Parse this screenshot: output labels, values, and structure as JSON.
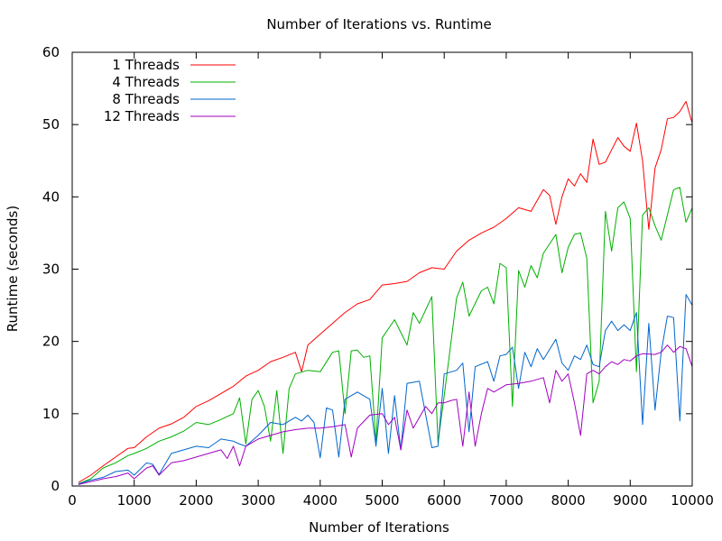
{
  "chart_data": {
    "type": "line",
    "title": "Number of Iterations vs. Runtime",
    "xlabel": "Number of Iterations",
    "ylabel": "Runtime (seconds)",
    "xlim": [
      0,
      10000
    ],
    "ylim": [
      0,
      60
    ],
    "xticks": [
      0,
      1000,
      2000,
      3000,
      4000,
      5000,
      6000,
      7000,
      8000,
      9000,
      10000
    ],
    "yticks": [
      0,
      10,
      20,
      30,
      40,
      50,
      60
    ],
    "grid": false,
    "legend_position": "top-left",
    "series": [
      {
        "name": "1 Threads",
        "color": "#ff0000",
        "points": [
          [
            100,
            0.5
          ],
          [
            300,
            1.5
          ],
          [
            500,
            2.8
          ],
          [
            700,
            4.0
          ],
          [
            900,
            5.2
          ],
          [
            1000,
            5.3
          ],
          [
            1200,
            6.8
          ],
          [
            1400,
            8.0
          ],
          [
            1600,
            8.6
          ],
          [
            1800,
            9.5
          ],
          [
            2000,
            11.0
          ],
          [
            2200,
            11.8
          ],
          [
            2400,
            12.8
          ],
          [
            2600,
            13.8
          ],
          [
            2800,
            15.2
          ],
          [
            3000,
            16.0
          ],
          [
            3200,
            17.2
          ],
          [
            3400,
            17.8
          ],
          [
            3600,
            18.5
          ],
          [
            3700,
            15.8
          ],
          [
            3800,
            19.5
          ],
          [
            4000,
            21.0
          ],
          [
            4200,
            22.5
          ],
          [
            4400,
            24.0
          ],
          [
            4600,
            25.2
          ],
          [
            4800,
            25.8
          ],
          [
            5000,
            27.8
          ],
          [
            5200,
            28.0
          ],
          [
            5400,
            28.3
          ],
          [
            5600,
            29.5
          ],
          [
            5800,
            30.2
          ],
          [
            6000,
            30.0
          ],
          [
            6200,
            32.5
          ],
          [
            6400,
            34.0
          ],
          [
            6600,
            35.0
          ],
          [
            6800,
            35.8
          ],
          [
            7000,
            37.0
          ],
          [
            7200,
            38.5
          ],
          [
            7400,
            38.0
          ],
          [
            7600,
            41.0
          ],
          [
            7700,
            40.2
          ],
          [
            7800,
            36.2
          ],
          [
            7900,
            40.0
          ],
          [
            8000,
            42.5
          ],
          [
            8100,
            41.5
          ],
          [
            8200,
            43.2
          ],
          [
            8300,
            42.0
          ],
          [
            8400,
            48.0
          ],
          [
            8500,
            44.5
          ],
          [
            8600,
            44.8
          ],
          [
            8700,
            46.5
          ],
          [
            8800,
            48.2
          ],
          [
            8900,
            47.0
          ],
          [
            9000,
            46.3
          ],
          [
            9100,
            50.2
          ],
          [
            9200,
            45.0
          ],
          [
            9300,
            35.5
          ],
          [
            9400,
            44.0
          ],
          [
            9500,
            46.5
          ],
          [
            9600,
            50.8
          ],
          [
            9700,
            51.0
          ],
          [
            9800,
            51.8
          ],
          [
            9900,
            53.2
          ],
          [
            10000,
            50.2
          ]
        ]
      },
      {
        "name": "4 Threads",
        "color": "#00b000",
        "points": [
          [
            100,
            0.3
          ],
          [
            300,
            1.0
          ],
          [
            500,
            2.5
          ],
          [
            700,
            3.2
          ],
          [
            900,
            4.2
          ],
          [
            1000,
            4.5
          ],
          [
            1200,
            5.2
          ],
          [
            1400,
            6.2
          ],
          [
            1600,
            6.8
          ],
          [
            1800,
            7.6
          ],
          [
            2000,
            8.8
          ],
          [
            2200,
            8.5
          ],
          [
            2400,
            9.2
          ],
          [
            2600,
            10.0
          ],
          [
            2700,
            12.2
          ],
          [
            2800,
            5.8
          ],
          [
            2900,
            12.0
          ],
          [
            3000,
            13.2
          ],
          [
            3100,
            11.0
          ],
          [
            3200,
            6.2
          ],
          [
            3300,
            13.2
          ],
          [
            3400,
            4.5
          ],
          [
            3500,
            13.5
          ],
          [
            3600,
            15.5
          ],
          [
            3800,
            16.0
          ],
          [
            4000,
            15.8
          ],
          [
            4200,
            18.5
          ],
          [
            4300,
            18.7
          ],
          [
            4400,
            10.0
          ],
          [
            4500,
            18.7
          ],
          [
            4600,
            18.8
          ],
          [
            4700,
            17.8
          ],
          [
            4800,
            18.0
          ],
          [
            4900,
            6.2
          ],
          [
            5000,
            20.5
          ],
          [
            5200,
            23.0
          ],
          [
            5400,
            19.5
          ],
          [
            5500,
            24.0
          ],
          [
            5600,
            22.5
          ],
          [
            5800,
            26.2
          ],
          [
            5900,
            6.0
          ],
          [
            6000,
            12.5
          ],
          [
            6200,
            26.0
          ],
          [
            6300,
            28.2
          ],
          [
            6400,
            23.5
          ],
          [
            6600,
            27.0
          ],
          [
            6700,
            27.5
          ],
          [
            6800,
            25.2
          ],
          [
            6900,
            30.8
          ],
          [
            7000,
            30.2
          ],
          [
            7100,
            11.0
          ],
          [
            7200,
            29.8
          ],
          [
            7300,
            27.5
          ],
          [
            7400,
            30.5
          ],
          [
            7500,
            28.8
          ],
          [
            7600,
            32.2
          ],
          [
            7800,
            34.8
          ],
          [
            7900,
            29.5
          ],
          [
            8000,
            33.0
          ],
          [
            8100,
            34.8
          ],
          [
            8200,
            35.0
          ],
          [
            8300,
            31.5
          ],
          [
            8400,
            11.5
          ],
          [
            8500,
            14.5
          ],
          [
            8600,
            38.0
          ],
          [
            8700,
            32.5
          ],
          [
            8800,
            38.5
          ],
          [
            8900,
            39.3
          ],
          [
            9000,
            37.0
          ],
          [
            9100,
            15.8
          ],
          [
            9200,
            37.5
          ],
          [
            9300,
            38.5
          ],
          [
            9400,
            36.0
          ],
          [
            9500,
            34.0
          ],
          [
            9600,
            37.5
          ],
          [
            9700,
            41.0
          ],
          [
            9800,
            41.3
          ],
          [
            9900,
            36.5
          ],
          [
            10000,
            38.5
          ]
        ]
      },
      {
        "name": "8 Threads",
        "color": "#0066cc",
        "points": [
          [
            100,
            0.3
          ],
          [
            300,
            0.8
          ],
          [
            500,
            1.2
          ],
          [
            700,
            2.0
          ],
          [
            900,
            2.2
          ],
          [
            1000,
            1.5
          ],
          [
            1200,
            3.2
          ],
          [
            1300,
            3.0
          ],
          [
            1400,
            1.6
          ],
          [
            1600,
            4.5
          ],
          [
            1800,
            5.0
          ],
          [
            2000,
            5.5
          ],
          [
            2200,
            5.3
          ],
          [
            2400,
            6.5
          ],
          [
            2600,
            6.2
          ],
          [
            2700,
            5.8
          ],
          [
            2800,
            5.5
          ],
          [
            3000,
            7.0
          ],
          [
            3200,
            8.8
          ],
          [
            3400,
            8.5
          ],
          [
            3600,
            9.5
          ],
          [
            3700,
            9.0
          ],
          [
            3800,
            9.8
          ],
          [
            3900,
            8.8
          ],
          [
            4000,
            3.9
          ],
          [
            4100,
            10.8
          ],
          [
            4200,
            10.5
          ],
          [
            4300,
            4.0
          ],
          [
            4400,
            12.0
          ],
          [
            4600,
            13.0
          ],
          [
            4800,
            12.0
          ],
          [
            4900,
            5.5
          ],
          [
            5000,
            13.5
          ],
          [
            5100,
            4.5
          ],
          [
            5200,
            12.5
          ],
          [
            5300,
            5.0
          ],
          [
            5400,
            14.2
          ],
          [
            5600,
            14.5
          ],
          [
            5800,
            5.3
          ],
          [
            5900,
            5.5
          ],
          [
            6000,
            15.5
          ],
          [
            6200,
            16.0
          ],
          [
            6300,
            17.0
          ],
          [
            6400,
            7.5
          ],
          [
            6500,
            16.5
          ],
          [
            6700,
            17.2
          ],
          [
            6800,
            14.5
          ],
          [
            6900,
            18.0
          ],
          [
            7000,
            18.2
          ],
          [
            7100,
            19.2
          ],
          [
            7200,
            13.5
          ],
          [
            7300,
            18.5
          ],
          [
            7400,
            16.5
          ],
          [
            7500,
            19.0
          ],
          [
            7600,
            17.5
          ],
          [
            7800,
            20.3
          ],
          [
            7900,
            17.0
          ],
          [
            8000,
            16.0
          ],
          [
            8100,
            18.0
          ],
          [
            8200,
            17.5
          ],
          [
            8300,
            19.5
          ],
          [
            8400,
            16.8
          ],
          [
            8500,
            16.5
          ],
          [
            8600,
            21.5
          ],
          [
            8700,
            22.8
          ],
          [
            8800,
            21.5
          ],
          [
            8900,
            22.3
          ],
          [
            9000,
            21.5
          ],
          [
            9100,
            24.0
          ],
          [
            9200,
            8.5
          ],
          [
            9300,
            22.5
          ],
          [
            9400,
            10.5
          ],
          [
            9500,
            18.5
          ],
          [
            9600,
            23.5
          ],
          [
            9700,
            23.3
          ],
          [
            9800,
            9.0
          ],
          [
            9900,
            26.5
          ],
          [
            10000,
            25.0
          ]
        ]
      },
      {
        "name": "12 Threads",
        "color": "#a000c0",
        "points": [
          [
            100,
            0.2
          ],
          [
            300,
            0.6
          ],
          [
            500,
            1.0
          ],
          [
            700,
            1.3
          ],
          [
            900,
            1.8
          ],
          [
            1000,
            1.0
          ],
          [
            1200,
            2.5
          ],
          [
            1300,
            2.8
          ],
          [
            1400,
            1.5
          ],
          [
            1600,
            3.2
          ],
          [
            1800,
            3.5
          ],
          [
            2000,
            4.0
          ],
          [
            2200,
            4.5
          ],
          [
            2400,
            5.0
          ],
          [
            2500,
            3.8
          ],
          [
            2600,
            5.5
          ],
          [
            2700,
            2.8
          ],
          [
            2800,
            5.5
          ],
          [
            3000,
            6.5
          ],
          [
            3200,
            7.0
          ],
          [
            3400,
            7.5
          ],
          [
            3600,
            7.8
          ],
          [
            3800,
            8.0
          ],
          [
            4000,
            8.0
          ],
          [
            4200,
            8.2
          ],
          [
            4400,
            8.5
          ],
          [
            4500,
            4.0
          ],
          [
            4600,
            8.0
          ],
          [
            4800,
            9.8
          ],
          [
            5000,
            10.0
          ],
          [
            5100,
            8.5
          ],
          [
            5200,
            9.5
          ],
          [
            5300,
            5.0
          ],
          [
            5400,
            10.5
          ],
          [
            5500,
            8.0
          ],
          [
            5700,
            11.0
          ],
          [
            5800,
            10.0
          ],
          [
            5900,
            11.5
          ],
          [
            6000,
            11.5
          ],
          [
            6100,
            11.8
          ],
          [
            6200,
            12.0
          ],
          [
            6300,
            5.5
          ],
          [
            6400,
            13.0
          ],
          [
            6500,
            5.5
          ],
          [
            6600,
            10.0
          ],
          [
            6700,
            13.5
          ],
          [
            6800,
            13.0
          ],
          [
            7000,
            14.0
          ],
          [
            7200,
            14.2
          ],
          [
            7400,
            14.5
          ],
          [
            7600,
            15.0
          ],
          [
            7700,
            11.5
          ],
          [
            7800,
            16.0
          ],
          [
            7900,
            14.5
          ],
          [
            8000,
            15.5
          ],
          [
            8100,
            11.5
          ],
          [
            8200,
            7.0
          ],
          [
            8300,
            15.5
          ],
          [
            8400,
            16.0
          ],
          [
            8500,
            15.5
          ],
          [
            8600,
            16.5
          ],
          [
            8700,
            17.2
          ],
          [
            8800,
            16.8
          ],
          [
            8900,
            17.5
          ],
          [
            9000,
            17.3
          ],
          [
            9100,
            18.0
          ],
          [
            9200,
            18.3
          ],
          [
            9400,
            18.2
          ],
          [
            9500,
            18.5
          ],
          [
            9600,
            19.5
          ],
          [
            9700,
            18.5
          ],
          [
            9800,
            19.3
          ],
          [
            9900,
            19.0
          ],
          [
            10000,
            16.5
          ]
        ]
      }
    ]
  }
}
